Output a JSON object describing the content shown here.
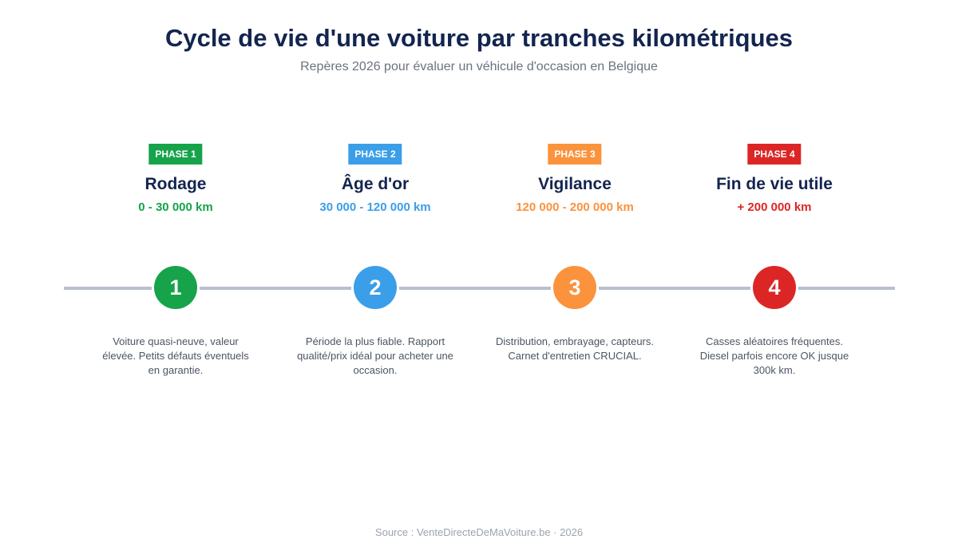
{
  "header": {
    "title": "Cycle de vie d'une voiture par tranches kilométriques",
    "subtitle": "Repères 2026 pour évaluer un véhicule d'occasion en Belgique"
  },
  "colors": {
    "title": "#13254f",
    "track": "#b8bfcf",
    "text": "#4b5563"
  },
  "phases": [
    {
      "badge": "PHASE 1",
      "name": "Rodage",
      "range": "0 - 30 000 km",
      "number": "1",
      "description": "Voiture quasi-neuve, valeur élevée. Petits défauts éventuels en garantie.",
      "color": "#16a34a"
    },
    {
      "badge": "PHASE 2",
      "name": "Âge d'or",
      "range": "30 000 - 120 000 km",
      "number": "2",
      "description": "Période la plus fiable. Rapport qualité/prix idéal pour acheter une occasion.",
      "color": "#3b9ee8"
    },
    {
      "badge": "PHASE 3",
      "name": "Vigilance",
      "range": "120 000 - 200 000 km",
      "number": "3",
      "description": "Distribution, embrayage, capteurs. Carnet d'entretien CRUCIAL.",
      "color": "#fb923c"
    },
    {
      "badge": "PHASE 4",
      "name": "Fin de vie utile",
      "range": "+ 200 000 km",
      "number": "4",
      "description": "Casses aléatoires fréquentes. Diesel parfois encore OK jusque 300k km.",
      "color": "#dc2626"
    }
  ],
  "footer": {
    "source": "Source : VenteDirecteDeMaVoiture.be · 2026"
  }
}
